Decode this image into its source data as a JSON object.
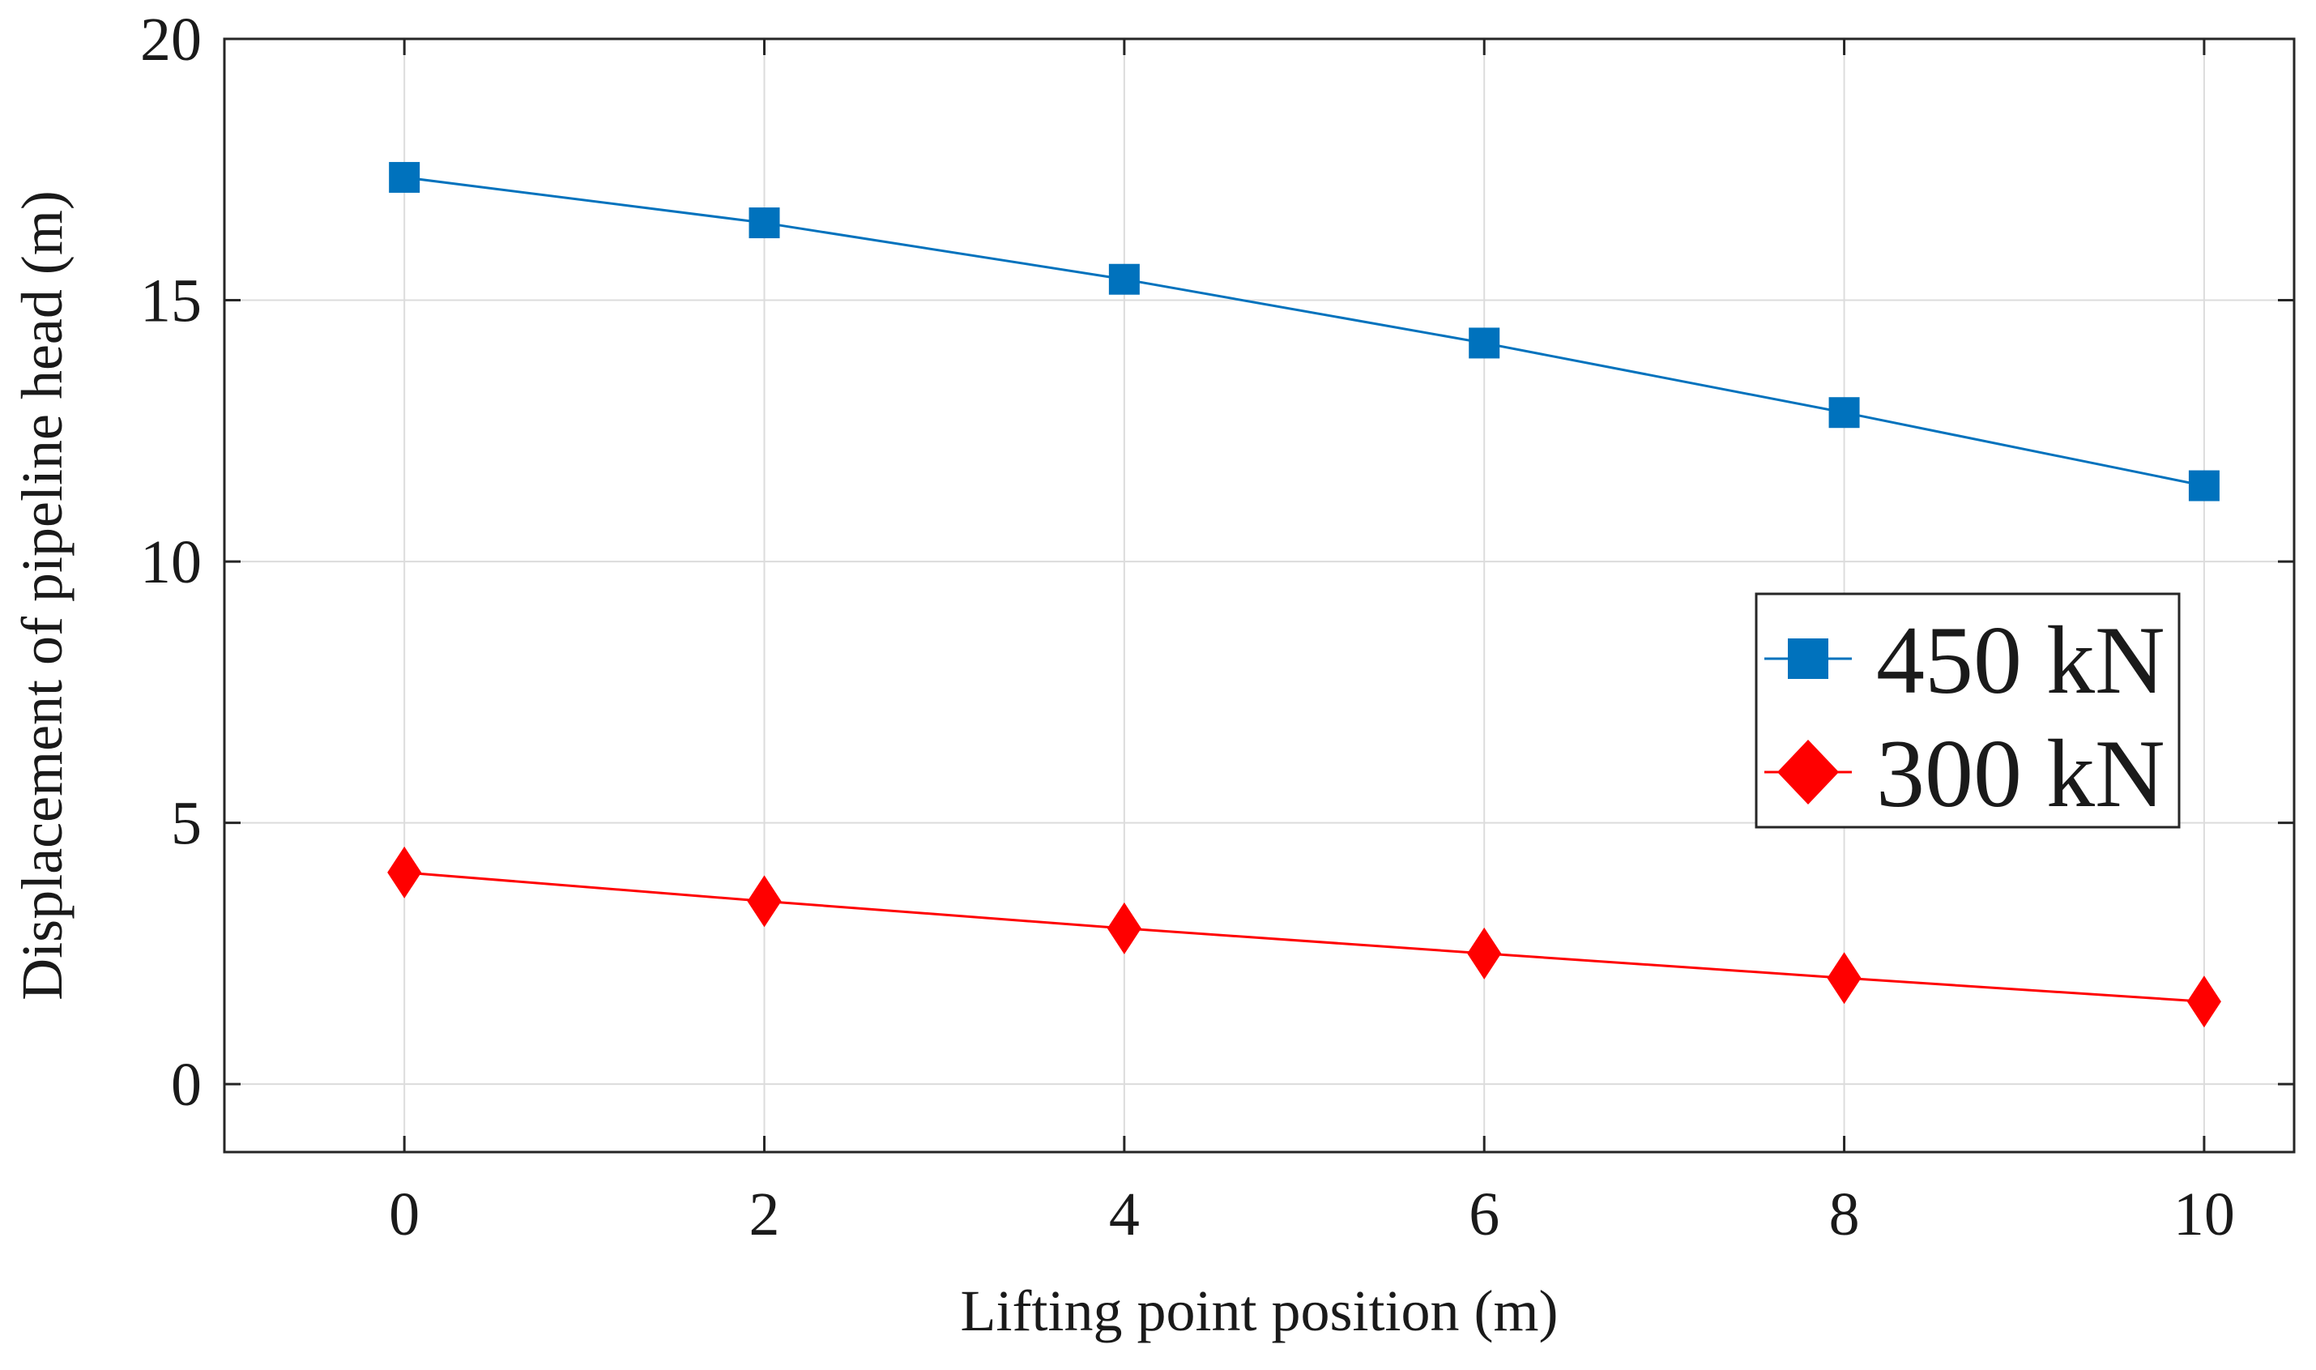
{
  "chart_data": {
    "type": "line",
    "xlabel": "Lifting point position (m)",
    "ylabel": "Displacement of pipeline head (m)",
    "x": [
      0,
      2,
      4,
      6,
      8,
      10
    ],
    "xlim": [
      -1,
      10.5
    ],
    "ylim": [
      -1.3,
      20.0
    ],
    "xticks": [
      0,
      2,
      4,
      6,
      8,
      10
    ],
    "yticks": [
      0,
      5,
      10,
      15,
      20
    ],
    "grid": true,
    "legend_position": "middle-right",
    "series": [
      {
        "name": "450 kN",
        "marker": "square",
        "color": "#0072BD",
        "values": [
          17.35,
          16.48,
          15.4,
          14.18,
          12.85,
          11.45
        ]
      },
      {
        "name": "300 kN",
        "marker": "diamond",
        "color": "#FF0000",
        "values": [
          4.05,
          3.5,
          2.98,
          2.5,
          2.03,
          1.58
        ]
      }
    ]
  }
}
